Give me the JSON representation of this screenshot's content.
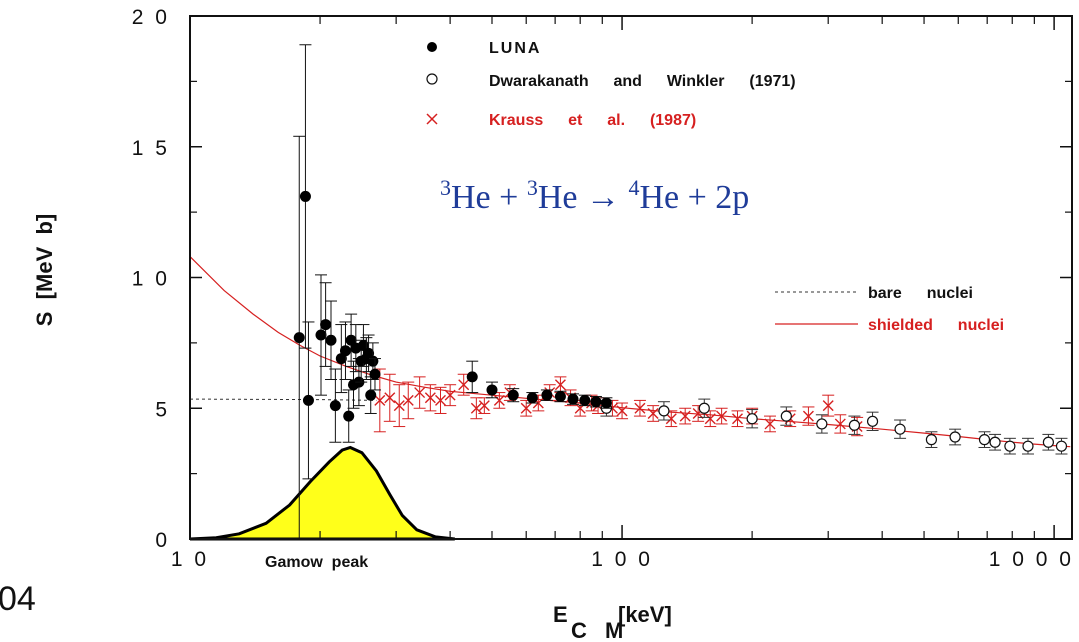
{
  "chart_data": {
    "type": "scatter",
    "xscale": "log",
    "xlim": [
      10,
      1100
    ],
    "ylim": [
      0,
      20
    ],
    "xticks": [
      {
        "v": 10,
        "label": "1 0"
      },
      {
        "v": 100,
        "label": "1 0 0"
      },
      {
        "v": 1000,
        "label": "1 0 0 0"
      }
    ],
    "yticks": [
      {
        "v": 0,
        "label": "0"
      },
      {
        "v": 5,
        "label": "5"
      },
      {
        "v": 10,
        "label": "1 0"
      },
      {
        "v": 15,
        "label": "1 5"
      },
      {
        "v": 20,
        "label": "2 0"
      }
    ],
    "xlabel_main": "E",
    "xlabel_sub": "C M",
    "xlabel_unit": "[keV]",
    "ylabel": "S  [MeV  b]",
    "equation": {
      "a1": "3",
      "b1": "He + ",
      "a2": "3",
      "b2": "He → ",
      "a3": "4",
      "b3": "He + 2p"
    },
    "gamow_label": "Gamow  peak",
    "side_text": "04",
    "legend": [
      {
        "label": "LUNA",
        "marker": "filled-circle",
        "color": "#000000"
      },
      {
        "label": "Dwarakanath  and  Winkler  (1971)",
        "marker": "open-circle",
        "color": "#111111"
      },
      {
        "label": "Krauss  et  al.  (1987)",
        "marker": "cross",
        "color": "#d62020"
      }
    ],
    "curve_legend": [
      {
        "label": "bare  nuclei",
        "style": "dotted",
        "color": "#333333"
      },
      {
        "label": "shielded  nuclei",
        "style": "solid",
        "color": "#d62020"
      }
    ],
    "colors": {
      "axis": "#111111",
      "luna": "#000000",
      "dw": "#111111",
      "krauss": "#d62020",
      "shielded": "#d62020",
      "gamow_fill": "#ffff1a",
      "equation": "#1f3c99"
    },
    "series": [
      {
        "name": "LUNA",
        "points": [
          {
            "x": 17.9,
            "y": 7.7,
            "err": 7.7
          },
          {
            "x": 18.5,
            "y": 13.1,
            "err": 5.8
          },
          {
            "x": 18.8,
            "y": 5.3,
            "err": 3.0
          },
          {
            "x": 20.1,
            "y": 7.8,
            "err": 2.3
          },
          {
            "x": 20.6,
            "y": 8.2,
            "err": 1.6
          },
          {
            "x": 21.2,
            "y": 7.6,
            "err": 1.5
          },
          {
            "x": 21.7,
            "y": 5.1,
            "err": 1.4
          },
          {
            "x": 22.4,
            "y": 6.9,
            "err": 1.3
          },
          {
            "x": 22.9,
            "y": 7.2,
            "err": 1.1
          },
          {
            "x": 23.3,
            "y": 4.7,
            "err": 1.0
          },
          {
            "x": 23.6,
            "y": 7.6,
            "err": 1.0
          },
          {
            "x": 23.9,
            "y": 5.9,
            "err": 0.9
          },
          {
            "x": 24.2,
            "y": 7.3,
            "err": 0.9
          },
          {
            "x": 24.6,
            "y": 6.0,
            "err": 0.9
          },
          {
            "x": 24.9,
            "y": 6.8,
            "err": 0.8
          },
          {
            "x": 25.2,
            "y": 7.4,
            "err": 0.8
          },
          {
            "x": 25.6,
            "y": 6.9,
            "err": 0.8
          },
          {
            "x": 25.9,
            "y": 7.1,
            "err": 0.7
          },
          {
            "x": 26.2,
            "y": 5.5,
            "err": 0.7
          },
          {
            "x": 26.5,
            "y": 6.8,
            "err": 0.7
          },
          {
            "x": 26.8,
            "y": 6.3,
            "err": 0.6
          },
          {
            "x": 45.0,
            "y": 6.2,
            "err": 0.6
          },
          {
            "x": 50.0,
            "y": 5.7,
            "err": 0.3
          },
          {
            "x": 56.0,
            "y": 5.5,
            "err": 0.25
          },
          {
            "x": 62.0,
            "y": 5.4,
            "err": 0.2
          },
          {
            "x": 67.0,
            "y": 5.5,
            "err": 0.2
          },
          {
            "x": 72.0,
            "y": 5.45,
            "err": 0.2
          },
          {
            "x": 77.0,
            "y": 5.35,
            "err": 0.2
          },
          {
            "x": 82.0,
            "y": 5.3,
            "err": 0.2
          },
          {
            "x": 87.0,
            "y": 5.25,
            "err": 0.2
          },
          {
            "x": 92.0,
            "y": 5.2,
            "err": 0.2
          }
        ]
      },
      {
        "name": "Dwarakanath  and  Winkler  (1971)",
        "points": [
          {
            "x": 92,
            "y": 5.0,
            "err": 0.3
          },
          {
            "x": 125,
            "y": 4.9,
            "err": 0.35
          },
          {
            "x": 155,
            "y": 5.0,
            "err": 0.35
          },
          {
            "x": 200,
            "y": 4.6,
            "err": 0.35
          },
          {
            "x": 240,
            "y": 4.7,
            "err": 0.35
          },
          {
            "x": 290,
            "y": 4.4,
            "err": 0.35
          },
          {
            "x": 345,
            "y": 4.35,
            "err": 0.35
          },
          {
            "x": 380,
            "y": 4.5,
            "err": 0.35
          },
          {
            "x": 440,
            "y": 4.2,
            "err": 0.35
          },
          {
            "x": 520,
            "y": 3.8,
            "err": 0.3
          },
          {
            "x": 590,
            "y": 3.9,
            "err": 0.3
          },
          {
            "x": 690,
            "y": 3.8,
            "err": 0.3
          },
          {
            "x": 730,
            "y": 3.7,
            "err": 0.3
          },
          {
            "x": 790,
            "y": 3.55,
            "err": 0.3
          },
          {
            "x": 870,
            "y": 3.55,
            "err": 0.3
          },
          {
            "x": 970,
            "y": 3.7,
            "err": 0.3
          },
          {
            "x": 1040,
            "y": 3.55,
            "err": 0.3
          }
        ]
      },
      {
        "name": "Krauss  et  al.  (1987)",
        "points": [
          {
            "x": 27.5,
            "y": 5.3,
            "err": 1.2
          },
          {
            "x": 29.0,
            "y": 5.4,
            "err": 0.9
          },
          {
            "x": 30.5,
            "y": 5.1,
            "err": 0.8
          },
          {
            "x": 32.0,
            "y": 5.3,
            "err": 0.7
          },
          {
            "x": 34.0,
            "y": 5.6,
            "err": 0.6
          },
          {
            "x": 36.0,
            "y": 5.4,
            "err": 0.5
          },
          {
            "x": 38.0,
            "y": 5.3,
            "err": 0.5
          },
          {
            "x": 40.0,
            "y": 5.5,
            "err": 0.4
          },
          {
            "x": 43.0,
            "y": 5.9,
            "err": 0.4
          },
          {
            "x": 46.0,
            "y": 5.0,
            "err": 0.4
          },
          {
            "x": 48.0,
            "y": 5.1,
            "err": 0.3
          },
          {
            "x": 52.0,
            "y": 5.3,
            "err": 0.3
          },
          {
            "x": 55.0,
            "y": 5.6,
            "err": 0.3
          },
          {
            "x": 60.0,
            "y": 5.0,
            "err": 0.3
          },
          {
            "x": 64.0,
            "y": 5.2,
            "err": 0.3
          },
          {
            "x": 68.0,
            "y": 5.6,
            "err": 0.3
          },
          {
            "x": 72.0,
            "y": 5.9,
            "err": 0.3
          },
          {
            "x": 76.0,
            "y": 5.4,
            "err": 0.3
          },
          {
            "x": 80.0,
            "y": 5.0,
            "err": 0.3
          },
          {
            "x": 85.0,
            "y": 5.2,
            "err": 0.3
          },
          {
            "x": 88.0,
            "y": 5.1,
            "err": 0.3
          },
          {
            "x": 95.0,
            "y": 5.0,
            "err": 0.3
          },
          {
            "x": 100.0,
            "y": 4.9,
            "err": 0.3
          },
          {
            "x": 110.0,
            "y": 5.0,
            "err": 0.3
          },
          {
            "x": 118.0,
            "y": 4.8,
            "err": 0.3
          },
          {
            "x": 130.0,
            "y": 4.6,
            "err": 0.3
          },
          {
            "x": 140.0,
            "y": 4.7,
            "err": 0.3
          },
          {
            "x": 150.0,
            "y": 4.8,
            "err": 0.3
          },
          {
            "x": 160.0,
            "y": 4.6,
            "err": 0.3
          },
          {
            "x": 170.0,
            "y": 4.7,
            "err": 0.3
          },
          {
            "x": 185.0,
            "y": 4.6,
            "err": 0.3
          },
          {
            "x": 200.0,
            "y": 4.7,
            "err": 0.3
          },
          {
            "x": 220.0,
            "y": 4.4,
            "err": 0.3
          },
          {
            "x": 245.0,
            "y": 4.6,
            "err": 0.3
          },
          {
            "x": 270.0,
            "y": 4.7,
            "err": 0.35
          },
          {
            "x": 300.0,
            "y": 5.1,
            "err": 0.4
          },
          {
            "x": 320.0,
            "y": 4.4,
            "err": 0.35
          },
          {
            "x": 350.0,
            "y": 4.3,
            "err": 0.35
          }
        ]
      }
    ],
    "shielded_curve": [
      {
        "x": 10,
        "y": 10.8
      },
      {
        "x": 12,
        "y": 9.5
      },
      {
        "x": 14,
        "y": 8.6
      },
      {
        "x": 16,
        "y": 7.9
      },
      {
        "x": 18,
        "y": 7.4
      },
      {
        "x": 20,
        "y": 7.0
      },
      {
        "x": 23,
        "y": 6.6
      },
      {
        "x": 26,
        "y": 6.3
      },
      {
        "x": 30,
        "y": 6.0
      },
      {
        "x": 35,
        "y": 5.8
      },
      {
        "x": 40,
        "y": 5.65
      },
      {
        "x": 50,
        "y": 5.5
      },
      {
        "x": 60,
        "y": 5.38
      },
      {
        "x": 70,
        "y": 5.28
      },
      {
        "x": 80,
        "y": 5.2
      },
      {
        "x": 100,
        "y": 5.02
      },
      {
        "x": 130,
        "y": 4.85
      },
      {
        "x": 160,
        "y": 4.75
      },
      {
        "x": 200,
        "y": 4.6
      },
      {
        "x": 250,
        "y": 4.48
      },
      {
        "x": 300,
        "y": 4.38
      },
      {
        "x": 400,
        "y": 4.2
      },
      {
        "x": 500,
        "y": 4.05
      },
      {
        "x": 600,
        "y": 3.92
      },
      {
        "x": 700,
        "y": 3.8
      },
      {
        "x": 800,
        "y": 3.7
      },
      {
        "x": 900,
        "y": 3.63
      },
      {
        "x": 1000,
        "y": 3.57
      },
      {
        "x": 1090,
        "y": 3.53
      }
    ],
    "bare_curve": [
      {
        "x": 10,
        "y": 5.35
      },
      {
        "x": 20,
        "y": 5.33
      },
      {
        "x": 27,
        "y": 5.3
      }
    ],
    "gamow_peak": [
      {
        "x": 10.0,
        "y": 0.0
      },
      {
        "x": 11.5,
        "y": 0.05
      },
      {
        "x": 13.0,
        "y": 0.2
      },
      {
        "x": 15.0,
        "y": 0.6
      },
      {
        "x": 17.0,
        "y": 1.3
      },
      {
        "x": 19.0,
        "y": 2.2
      },
      {
        "x": 21.0,
        "y": 2.95
      },
      {
        "x": 22.5,
        "y": 3.4
      },
      {
        "x": 23.5,
        "y": 3.5
      },
      {
        "x": 25.0,
        "y": 3.3
      },
      {
        "x": 27.0,
        "y": 2.6
      },
      {
        "x": 29.0,
        "y": 1.7
      },
      {
        "x": 31.0,
        "y": 0.9
      },
      {
        "x": 33.5,
        "y": 0.35
      },
      {
        "x": 37.0,
        "y": 0.08
      },
      {
        "x": 41.0,
        "y": 0.0
      }
    ]
  }
}
